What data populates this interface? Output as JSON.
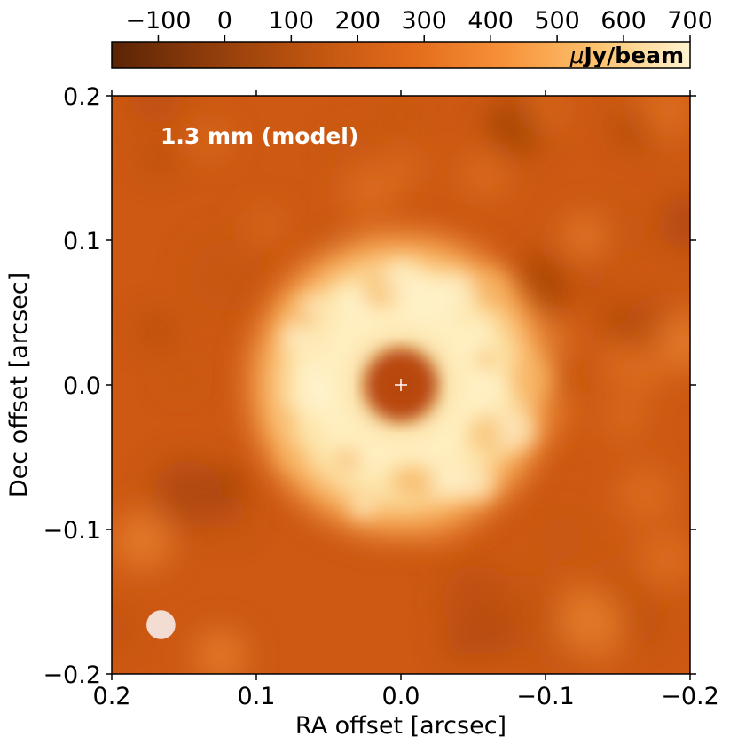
{
  "chart_data": {
    "type": "heatmap",
    "title": "",
    "annotation": "1.3 mm (model)",
    "xlabel": "RA offset [arcsec]",
    "ylabel": "Dec offset [arcsec]",
    "xlim": [
      0.2,
      -0.2
    ],
    "ylim": [
      -0.2,
      0.2
    ],
    "x_ticks": [
      0.2,
      0.1,
      0.0,
      -0.1,
      -0.2
    ],
    "x_tick_labels": [
      "0.2",
      "0.1",
      "0.0",
      "−0.1",
      "−0.2"
    ],
    "y_ticks": [
      0.2,
      0.1,
      0.0,
      -0.1,
      -0.2
    ],
    "y_tick_labels": [
      "0.2",
      "0.1",
      "0.0",
      "−0.1",
      "−0.2"
    ],
    "colorbar": {
      "label_prefix": "μ",
      "label_rest": "Jy/beam",
      "range": [
        -170,
        700
      ],
      "ticks": [
        -100,
        0,
        100,
        200,
        300,
        400,
        500,
        600,
        700
      ],
      "tick_labels": [
        "−100",
        "0",
        "100",
        "200",
        "300",
        "400",
        "500",
        "600",
        "700"
      ],
      "colormap": "Oranges-dark (dark brown → orange → pale cream)",
      "colors": [
        "#5a2406",
        "#8a3a0a",
        "#c05510",
        "#e36b1b",
        "#f7923a",
        "#fdc36e",
        "#fff3cf"
      ]
    },
    "structure": {
      "description_values": "ring of emission centred on the star",
      "ring_center": [
        0.0,
        0.0
      ],
      "ring_radius_arcsec": 0.07,
      "ring_width_arcsec": 0.035,
      "ring_peak_uJy": 620,
      "central_cavity_uJy": 120,
      "background_uJy": 40
    },
    "star_marker": {
      "x": 0.0,
      "y": 0.0,
      "symbol": "+"
    },
    "beam": {
      "x": 0.166,
      "y": -0.166,
      "diameter_arcsec": 0.02
    }
  }
}
